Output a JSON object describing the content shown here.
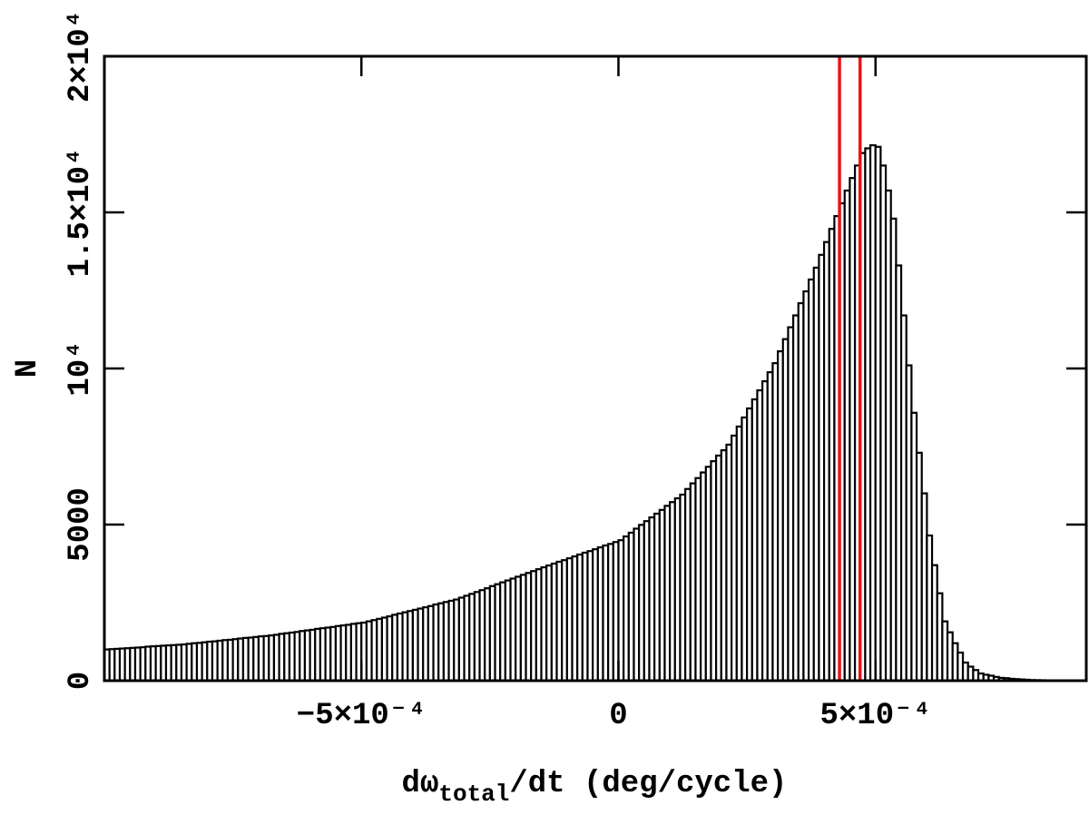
{
  "chart_data": {
    "type": "histogram",
    "xlabel": {
      "text": "dω",
      "subscript": "total",
      "suffix": "/dt (deg/cycle)"
    },
    "ylabel": "N",
    "bins": [
      -0.001,
      -0.00099,
      -0.00098,
      -0.00097,
      -0.00096,
      -0.00095,
      -0.00094,
      -0.00093,
      -0.00092,
      -0.00091,
      -0.0009,
      -0.00089,
      -0.00088,
      -0.00087,
      -0.00086,
      -0.00085,
      -0.00084,
      -0.00083,
      -0.00082,
      -0.00081,
      -0.0008,
      -0.00079,
      -0.00078,
      -0.00077,
      -0.00076,
      -0.00075,
      -0.00074,
      -0.00073,
      -0.00072,
      -0.00071,
      -0.0007,
      -0.00069,
      -0.00068,
      -0.00067,
      -0.00066,
      -0.00065,
      -0.00064,
      -0.00063,
      -0.00062,
      -0.00061,
      -0.0006,
      -0.00059,
      -0.00058,
      -0.00057,
      -0.00056,
      -0.00055,
      -0.00054,
      -0.00053,
      -0.00052,
      -0.00051,
      -0.0005,
      -0.00049,
      -0.00048,
      -0.00047,
      -0.00046,
      -0.00045,
      -0.00044,
      -0.00043,
      -0.00042,
      -0.00041,
      -0.0004,
      -0.00039,
      -0.00038,
      -0.00037,
      -0.00036,
      -0.00035,
      -0.00034,
      -0.00033,
      -0.00032,
      -0.00031,
      -0.0003,
      -0.00029,
      -0.00028,
      -0.00027,
      -0.00026,
      -0.00025,
      -0.00024,
      -0.00023,
      -0.00022,
      -0.00021,
      -0.0002,
      -0.00019,
      -0.00018,
      -0.00017,
      -0.00016,
      -0.00015,
      -0.00014,
      -0.00013,
      -0.00012,
      -0.00011,
      -0.0001,
      -9e-05,
      -8e-05,
      -7e-05,
      -6e-05,
      -5e-05,
      -4e-05,
      -3e-05,
      -2e-05,
      -1e-05,
      0,
      1e-05,
      2e-05,
      3e-05,
      4e-05,
      5e-05,
      6e-05,
      7e-05,
      8e-05,
      9e-05,
      0.0001,
      0.00011,
      0.00012,
      0.00013,
      0.00014,
      0.00015,
      0.00016,
      0.00017,
      0.00018,
      0.00019,
      0.0002,
      0.00021,
      0.00022,
      0.00023,
      0.00024,
      0.00025,
      0.00026,
      0.00027,
      0.00028,
      0.00029,
      0.0003,
      0.00031,
      0.00032,
      0.00033,
      0.00034,
      0.00035,
      0.00036,
      0.00037,
      0.00038,
      0.00039,
      0.0004,
      0.00041,
      0.00042,
      0.00043,
      0.00044,
      0.00045,
      0.00046,
      0.00047,
      0.00048,
      0.00049,
      0.0005,
      0.00051,
      0.00052,
      0.00053,
      0.00054,
      0.00055,
      0.00056,
      0.00057,
      0.00058,
      0.00059,
      0.0006,
      0.00061,
      0.00062,
      0.00063,
      0.00064,
      0.00065,
      0.00066,
      0.00067,
      0.00068,
      0.00069,
      0.0007,
      0.00071,
      0.00072,
      0.00073,
      0.00074,
      0.00075,
      0.00076,
      0.00077,
      0.00078,
      0.00079,
      0.0008,
      0.00081,
      0.00082,
      0.00083,
      0.00084,
      0.00085,
      0.00086,
      0.00087,
      0.00088,
      0.00089,
      0.0009
    ],
    "values": [
      1000,
      1010,
      1020,
      1030,
      1040,
      1050,
      1060,
      1070,
      1090,
      1100,
      1110,
      1120,
      1130,
      1140,
      1150,
      1160,
      1180,
      1200,
      1210,
      1230,
      1250,
      1260,
      1280,
      1300,
      1310,
      1330,
      1350,
      1370,
      1380,
      1400,
      1420,
      1430,
      1450,
      1470,
      1500,
      1520,
      1540,
      1560,
      1590,
      1610,
      1630,
      1660,
      1680,
      1700,
      1720,
      1750,
      1770,
      1790,
      1820,
      1840,
      1860,
      1900,
      1940,
      1980,
      2020,
      2060,
      2110,
      2150,
      2190,
      2230,
      2270,
      2310,
      2350,
      2390,
      2440,
      2480,
      2520,
      2560,
      2600,
      2660,
      2720,
      2780,
      2840,
      2900,
      2960,
      3030,
      3090,
      3150,
      3210,
      3270,
      3330,
      3390,
      3450,
      3510,
      3570,
      3630,
      3690,
      3750,
      3810,
      3860,
      3920,
      3980,
      4040,
      4100,
      4150,
      4210,
      4270,
      4330,
      4380,
      4440,
      4500,
      4620,
      4740,
      4870,
      4990,
      5110,
      5230,
      5350,
      5470,
      5600,
      5720,
      5840,
      5960,
      6140,
      6320,
      6490,
      6670,
      6850,
      7030,
      7210,
      7380,
      7560,
      7850,
      8140,
      8430,
      8720,
      9010,
      9300,
      9590,
      9880,
      10170,
      10550,
      10940,
      11320,
      11700,
      12090,
      12470,
      12850,
      13230,
      13640,
      14050,
      14470,
      14880,
      15290,
      15700,
      16100,
      16500,
      16900,
      17050,
      17150,
      17100,
      16500,
      15700,
      14800,
      13300,
      11700,
      10100,
      8580,
      7300,
      6000,
      4650,
      3700,
      2800,
      1900,
      1550,
      1200,
      900,
      580,
      450,
      340,
      230,
      190,
      160,
      120,
      90,
      80,
      60,
      50,
      40,
      30,
      20,
      17,
      14,
      10,
      8,
      5,
      3,
      2,
      1,
      0
    ],
    "color": "#000000",
    "vlines": [
      0.00043,
      0.00047
    ],
    "vline_color": "#e8141c",
    "xlim": [
      -0.001,
      0.00091
    ],
    "ylim": [
      0,
      20000
    ],
    "xticks": [
      {
        "value": -0.0005,
        "label": "−5×10⁻⁴"
      },
      0,
      {
        "value": 0.0005,
        "label": "5×10⁻⁴"
      }
    ],
    "yticks": [
      0,
      5000,
      {
        "value": 10000,
        "label": "10⁴"
      },
      {
        "value": 15000,
        "label": "1.5×10⁴"
      },
      {
        "value": 20000,
        "label": "2×10⁴"
      }
    ]
  }
}
